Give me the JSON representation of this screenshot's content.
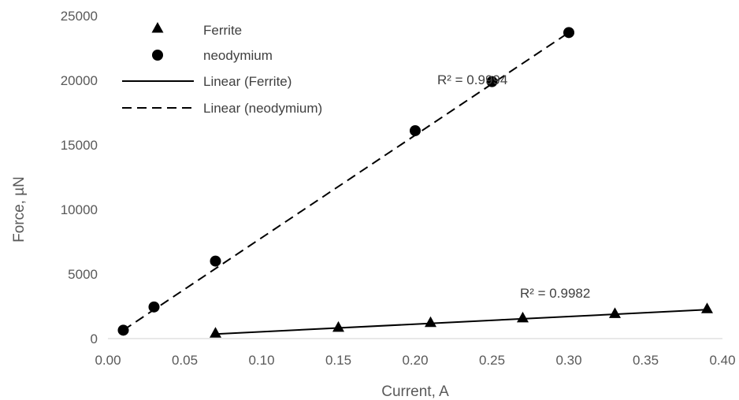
{
  "chart_data": {
    "type": "scatter",
    "xlabel": "Current, A",
    "ylabel": "Force, µN",
    "xlim": [
      0.0,
      0.4
    ],
    "ylim": [
      0,
      25000
    ],
    "x_ticks": [
      "0.00",
      "0.05",
      "0.10",
      "0.15",
      "0.20",
      "0.25",
      "0.30",
      "0.35",
      "0.40"
    ],
    "y_ticks": [
      "0",
      "5000",
      "10000",
      "15000",
      "20000",
      "25000"
    ],
    "grid": false,
    "legend_position": "top-left",
    "series": [
      {
        "name": "Ferrite",
        "marker": "triangle",
        "x": [
          0.07,
          0.15,
          0.21,
          0.27,
          0.33,
          0.39
        ],
        "y": [
          350,
          800,
          1170,
          1530,
          1870,
          2240
        ]
      },
      {
        "name": "neodymium",
        "marker": "circle",
        "x": [
          0.01,
          0.03,
          0.07,
          0.2,
          0.25,
          0.3
        ],
        "y": [
          650,
          2450,
          6000,
          16100,
          19900,
          23700
        ]
      }
    ],
    "trendlines": [
      {
        "name": "Linear (Ferrite)",
        "series": "Ferrite",
        "style": "solid",
        "x": [
          0.07,
          0.39
        ],
        "y": [
          350,
          2240
        ],
        "r2_label": "R² = 0.9982"
      },
      {
        "name": "Linear (neodymium)",
        "series": "neodymium",
        "style": "dashed",
        "x": [
          0.01,
          0.3
        ],
        "y": [
          650,
          23700
        ],
        "r2_label": "R² = 0.9994"
      }
    ],
    "colors": {
      "marks": "#000000",
      "text": "#595959",
      "axis": "#d9d9d9"
    }
  }
}
